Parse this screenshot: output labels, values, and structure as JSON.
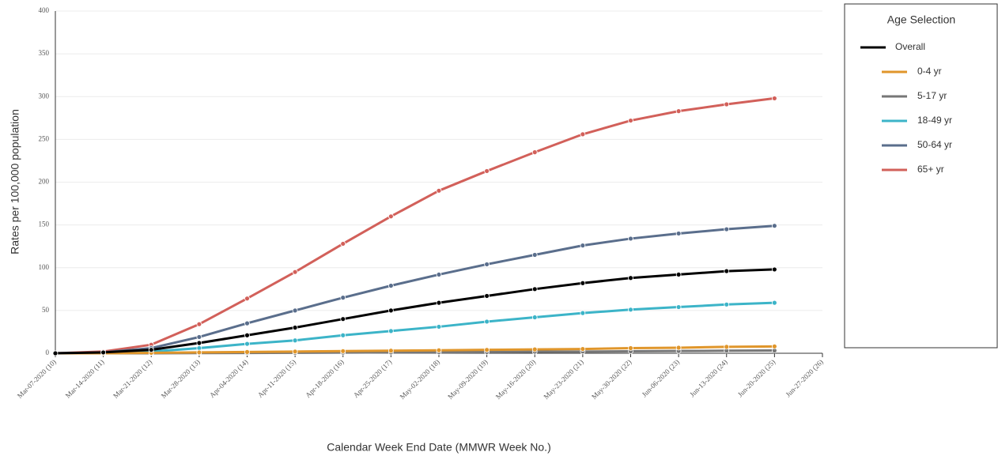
{
  "chart_data": {
    "type": "line",
    "x_label": "Calendar Week End Date (MMWR Week No.)",
    "y_label": "Rates per 100,000 population",
    "legend_title": "Age Selection",
    "legend": "right",
    "grid": true,
    "categories": [
      "Mar-07-2020 (10)",
      "Mar-14-2020 (11)",
      "Mar-21-2020 (12)",
      "Mar-28-2020 (13)",
      "Apr-04-2020 (14)",
      "Apr-11-2020 (15)",
      "Apr-18-2020 (16)",
      "Apr-25-2020 (17)",
      "May-02-2020 (18)",
      "May-09-2020 (19)",
      "May-16-2020 (20)",
      "May-23-2020 (21)",
      "May-30-2020 (22)",
      "Jun-06-2020 (23)",
      "Jun-13-2020 (24)",
      "Jun-20-2020 (25)",
      "Jun-27-2020 (26)"
    ],
    "ylim": [
      0,
      400
    ],
    "yticks": [
      0,
      50,
      100,
      150,
      200,
      250,
      300,
      350,
      400
    ],
    "series": [
      {
        "name": "Overall",
        "color": "#000000",
        "values": [
          0,
          1,
          4,
          12,
          21,
          30,
          40,
          50,
          59,
          67,
          75,
          82,
          88,
          92,
          96,
          98,
          null
        ]
      },
      {
        "name": "0-4 yr",
        "color": "#e0962b",
        "values": [
          0,
          0,
          0.5,
          1,
          1.5,
          2,
          2.5,
          3,
          3.5,
          4,
          4.5,
          5,
          6,
          6.5,
          7.5,
          8,
          null
        ]
      },
      {
        "name": "5-17 yr",
        "color": "#777777",
        "values": [
          0,
          0,
          0,
          0.2,
          0.4,
          0.6,
          0.8,
          1,
          1.2,
          1.5,
          1.8,
          2,
          2.3,
          2.6,
          3,
          3.2,
          null
        ]
      },
      {
        "name": "18-49 yr",
        "color": "#3cb4c8",
        "values": [
          0,
          0.5,
          2,
          6,
          11,
          15,
          21,
          26,
          31,
          37,
          42,
          47,
          51,
          54,
          57,
          59,
          null
        ]
      },
      {
        "name": "50-64 yr",
        "color": "#5a6e8c",
        "values": [
          0,
          1,
          6,
          19,
          35,
          50,
          65,
          79,
          92,
          104,
          115,
          126,
          134,
          140,
          145,
          149,
          null
        ]
      },
      {
        "name": "65+ yr",
        "color": "#d2605a",
        "values": [
          0,
          2,
          10,
          34,
          64,
          95,
          128,
          160,
          190,
          213,
          235,
          256,
          272,
          283,
          291,
          298,
          null
        ]
      }
    ]
  }
}
